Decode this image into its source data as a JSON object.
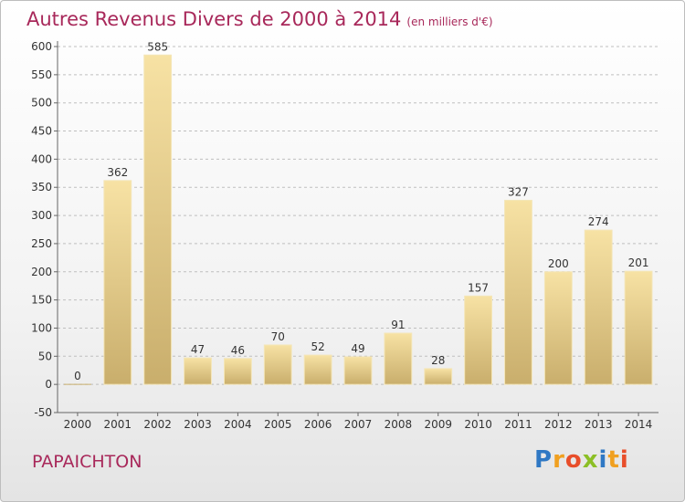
{
  "chart_data": {
    "type": "bar",
    "title": "Autres Revenus Divers de 2000 à 2014",
    "title_unit": "(en milliers d'€)",
    "categories": [
      "2000",
      "2001",
      "2002",
      "2003",
      "2004",
      "2005",
      "2006",
      "2007",
      "2008",
      "2009",
      "2010",
      "2011",
      "2012",
      "2013",
      "2014"
    ],
    "values": [
      0,
      362,
      585,
      47,
      46,
      70,
      52,
      49,
      91,
      28,
      157,
      327,
      200,
      274,
      201
    ],
    "ylim": [
      -50,
      600
    ],
    "yticks": [
      -50,
      0,
      50,
      100,
      150,
      200,
      250,
      300,
      350,
      400,
      450,
      500,
      550,
      600
    ],
    "grid": true,
    "xlabel": "",
    "ylabel": "",
    "colors": {
      "bar_light": "#f7e2a4",
      "bar_dark": "#c9ae6c",
      "title": "#a8285a"
    }
  },
  "footer": {
    "commune": "PAPAICHTON",
    "logo_letters": [
      {
        "ch": "P",
        "color": "#2f78c4"
      },
      {
        "ch": "r",
        "color": "#f0a020"
      },
      {
        "ch": "o",
        "color": "#e84e2a"
      },
      {
        "ch": "x",
        "color": "#8cbf26"
      },
      {
        "ch": "i",
        "color": "#2f78c4"
      },
      {
        "ch": "t",
        "color": "#f0a020"
      },
      {
        "ch": "i",
        "color": "#e84e2a"
      }
    ]
  }
}
